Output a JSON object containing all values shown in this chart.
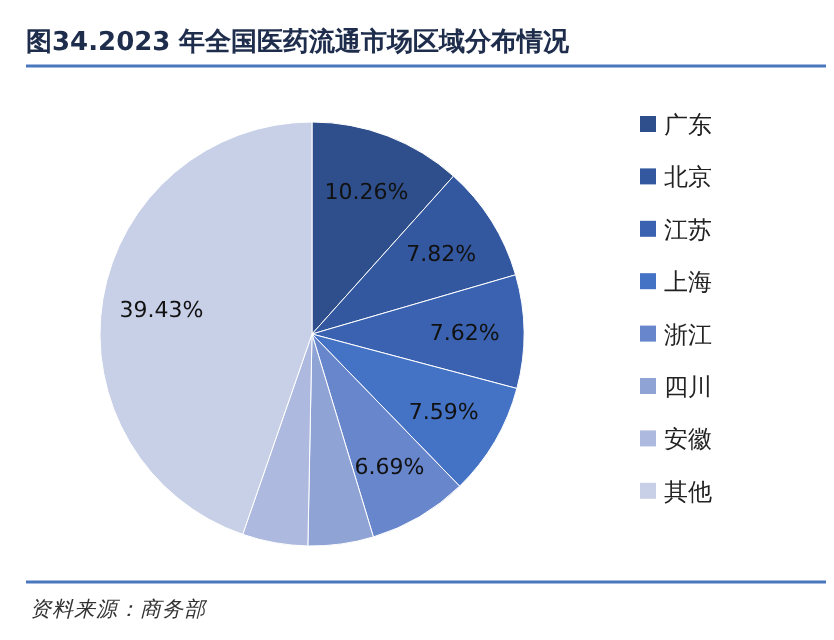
{
  "chart_data": {
    "type": "pie",
    "title": "图34.2023 年全国医药流通市场区域分布情况",
    "categories": [
      "广东",
      "北京",
      "江苏",
      "上海",
      "浙江",
      "四川",
      "安徽",
      "其他"
    ],
    "values": [
      10.26,
      7.82,
      7.62,
      7.59,
      6.69,
      4.4,
      4.4,
      39.43
    ],
    "value_labels": [
      "10.26%",
      "7.82%",
      "7.62%",
      "7.59%",
      "6.69%",
      null,
      null,
      "39.43%"
    ],
    "colors": [
      "#2e4f8c",
      "#3358a0",
      "#3a62b0",
      "#4472c4",
      "#6886cc",
      "#8fa3d4",
      "#adb9de",
      "#c8d0e8"
    ],
    "legend": "right",
    "annotations": [
      "资料来源：商务部"
    ]
  }
}
